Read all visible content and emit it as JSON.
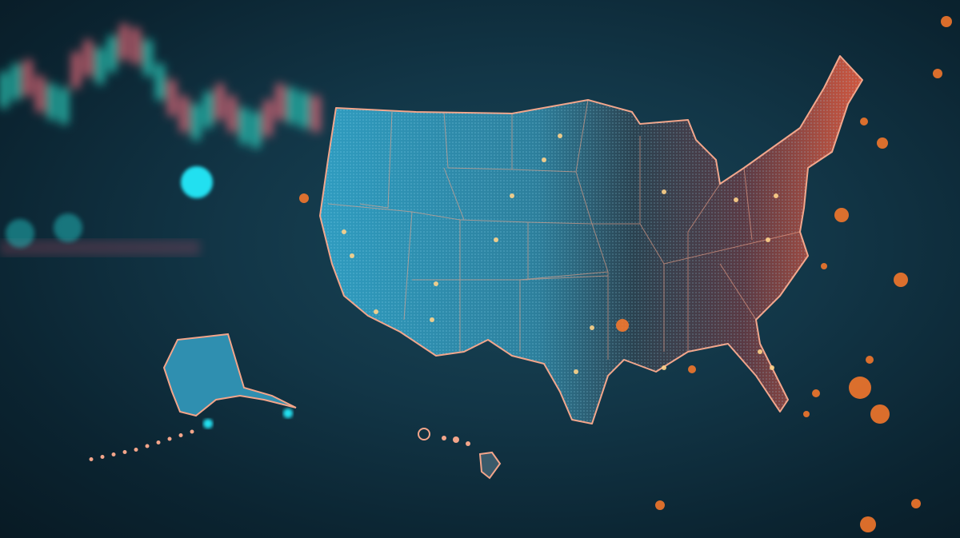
{
  "colors": {
    "background": "#123647",
    "map_west": "#2f9cc0",
    "map_center": "#2b4250",
    "map_east": "#d0573f",
    "border_glow": "#f3a58a",
    "hotspot": "#ff7a2a",
    "cyan_light": "#22e0f0",
    "candle_up": "#2ee6d0",
    "candle_down": "#ff6f7f"
  },
  "icons": [
    "us-map",
    "alaska",
    "hawaii",
    "candlestick-chart",
    "glow-dots"
  ]
}
